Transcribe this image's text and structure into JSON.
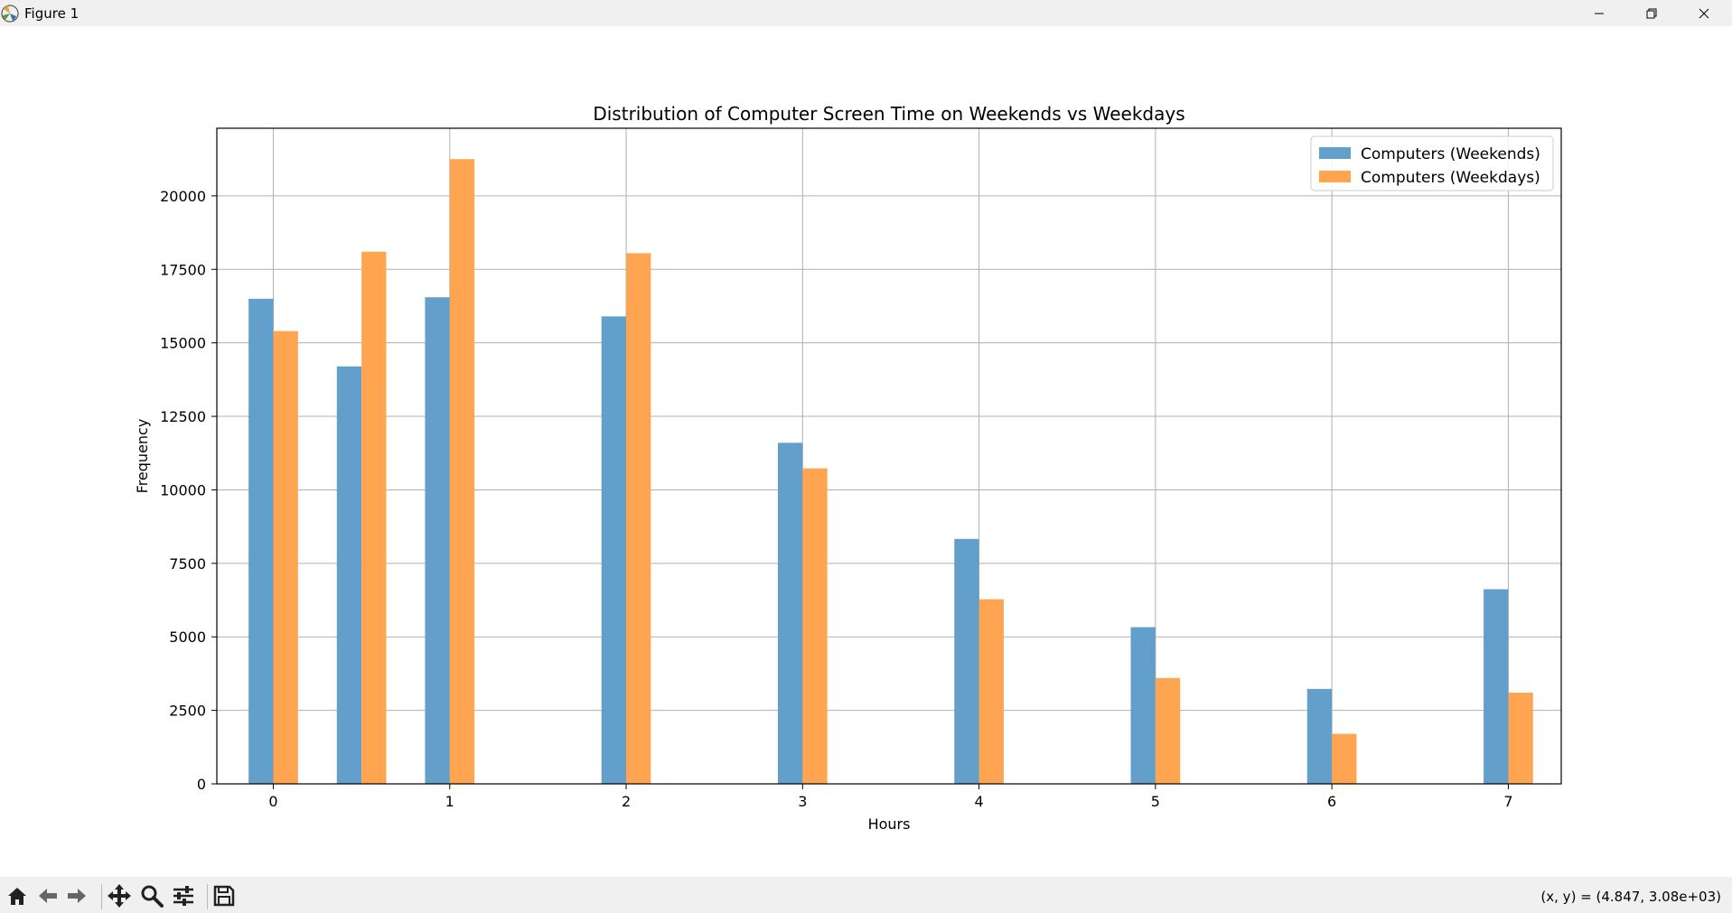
{
  "window": {
    "title": "Figure 1",
    "icons": {
      "app": "matplotlib-icon",
      "minimize": "minimize-icon",
      "restore": "restore-icon",
      "close": "close-icon"
    }
  },
  "toolbar": {
    "buttons": [
      "home-icon",
      "back-icon",
      "forward-icon",
      "pan-icon",
      "zoom-icon",
      "configure-subplots-icon",
      "save-icon"
    ],
    "coords_text": "(x, y) = (4.847, 3.08e+03)"
  },
  "chart_data": {
    "type": "bar",
    "title": "Distribution of Computer Screen Time on Weekends vs Weekdays",
    "xlabel": "Hours",
    "ylabel": "Frequency",
    "xlim": [
      -0.32,
      7.3
    ],
    "ylim": [
      0,
      22300
    ],
    "xticks": [
      0,
      1,
      2,
      3,
      4,
      5,
      6,
      7
    ],
    "yticks": [
      0,
      2500,
      5000,
      7500,
      10000,
      12500,
      15000,
      17500,
      20000
    ],
    "grid": true,
    "legend_position": "top-right",
    "bar_width": 0.14,
    "x": [
      0,
      0.5,
      1,
      2,
      3,
      4,
      5,
      6,
      7
    ],
    "series": [
      {
        "name": "Computers (Weekends)",
        "color": "#629fca",
        "offset": -0.07,
        "values": [
          16500,
          14200,
          16550,
          15900,
          11600,
          8330,
          5330,
          3230,
          6620
        ]
      },
      {
        "name": "Computers (Weekdays)",
        "color": "#ffa450",
        "offset": 0.07,
        "values": [
          15400,
          18100,
          21250,
          18050,
          10730,
          6280,
          3600,
          1700,
          3100
        ]
      }
    ]
  }
}
